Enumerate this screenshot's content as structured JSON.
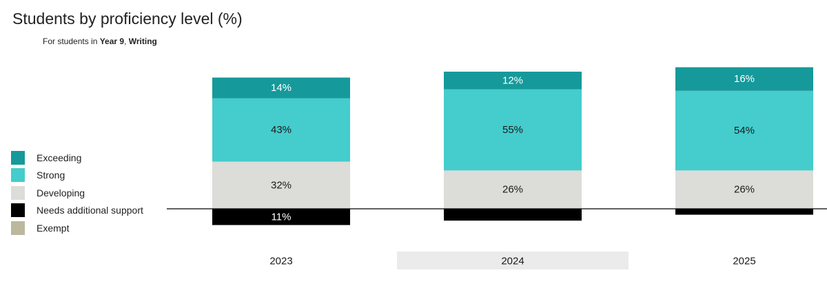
{
  "header": {
    "title": "Students by proficiency level (%)",
    "subtitle_prefix": "For students in ",
    "subtitle_year": "Year 9",
    "subtitle_sep": ", ",
    "subtitle_domain": "Writing"
  },
  "legend": [
    {
      "label": "Exceeding",
      "color": "#16999a"
    },
    {
      "label": "Strong",
      "color": "#45cccc"
    },
    {
      "label": "Developing",
      "color": "#dcdcd8"
    },
    {
      "label": "Needs additional support",
      "color": "#000000"
    },
    {
      "label": "Exempt",
      "color": "#bcb89e"
    }
  ],
  "chart_data": {
    "type": "bar",
    "stacked": true,
    "categories": [
      "2023",
      "2024",
      "2025"
    ],
    "highlighted_category": "2024",
    "series": [
      {
        "name": "Needs additional support",
        "values": [
          11,
          8,
          4
        ],
        "labels": [
          "11%",
          "",
          ""
        ],
        "color": "#000000",
        "label_color": "#ffffff"
      },
      {
        "name": "Developing",
        "values": [
          32,
          26,
          26
        ],
        "labels": [
          "32%",
          "26%",
          "26%"
        ],
        "color": "#dcdcd8",
        "label_color": "#1a1a1a"
      },
      {
        "name": "Strong",
        "values": [
          43,
          55,
          54
        ],
        "labels": [
          "43%",
          "55%",
          "54%"
        ],
        "color": "#45cccc",
        "label_color": "#1a1a1a"
      },
      {
        "name": "Exceeding",
        "values": [
          14,
          12,
          16
        ],
        "labels": [
          "14%",
          "12%",
          "16%"
        ],
        "color": "#16999a",
        "label_color": "#ffffff"
      }
    ],
    "ylim": [
      0,
      100
    ],
    "baseline_series": "Needs additional support",
    "grid": false,
    "legend_position": "left"
  }
}
